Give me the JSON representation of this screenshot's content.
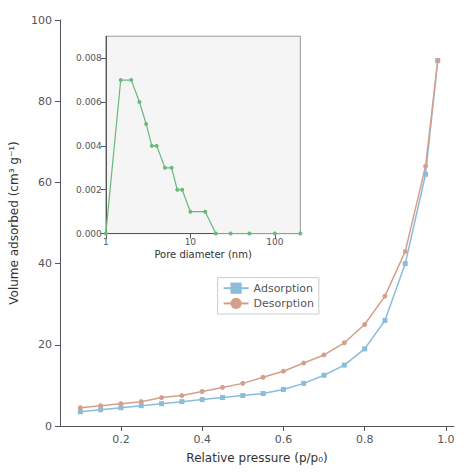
{
  "chart_data": [
    {
      "type": "line",
      "xlabel": "Relative pressure (p/p₀)",
      "ylabel": "Volume adsorbed (cm³ g⁻¹)",
      "series": [
        {
          "name": "Adsorption",
          "color": "#8bbcda",
          "marker": "square",
          "x": [
            0.1,
            0.15,
            0.2,
            0.25,
            0.3,
            0.35,
            0.4,
            0.45,
            0.5,
            0.55,
            0.6,
            0.65,
            0.7,
            0.75,
            0.8,
            0.85,
            0.9,
            0.95,
            0.98
          ],
          "values": [
            3.5,
            4.0,
            4.5,
            5.0,
            5.5,
            6.0,
            6.5,
            7.0,
            7.5,
            8.0,
            9.0,
            10.5,
            12.5,
            15.0,
            19.0,
            26.0,
            40.0,
            62.0,
            90.0
          ]
        },
        {
          "name": "Desorption",
          "color": "#d4a08c",
          "marker": "circle",
          "x": [
            0.98,
            0.95,
            0.9,
            0.85,
            0.8,
            0.75,
            0.7,
            0.65,
            0.6,
            0.55,
            0.5,
            0.45,
            0.4,
            0.35,
            0.3,
            0.25,
            0.2,
            0.15,
            0.1
          ],
          "values": [
            90.0,
            64.0,
            43.0,
            32.0,
            25.0,
            20.5,
            17.5,
            15.5,
            13.5,
            12.0,
            10.5,
            9.5,
            8.5,
            7.5,
            7.0,
            6.0,
            5.5,
            5.0,
            4.5
          ]
        }
      ],
      "xlim": [
        0.05,
        1.02
      ],
      "xticks": [
        0.2,
        0.4,
        0.6,
        0.8,
        {
          "value": 1.0,
          "label": "1.0"
        }
      ],
      "ylim": [
        0,
        100
      ],
      "yticks": [
        0,
        20,
        40,
        60,
        80,
        100
      ],
      "grid": false,
      "legend": "center"
    },
    {
      "type": "line",
      "xlabel": "Pore diameter (nm)",
      "x": [
        1.0,
        1.5,
        2.0,
        2.5,
        3.0,
        3.5,
        4.0,
        5.0,
        6.0,
        7.0,
        8.0,
        10.0,
        15.0,
        20.0,
        30.0,
        50.0,
        100.0,
        200.0
      ],
      "values": [
        0.0,
        0.007,
        0.007,
        0.006,
        0.005,
        0.004,
        0.004,
        0.003,
        0.003,
        0.002,
        0.002,
        0.001,
        0.001,
        0.0,
        0.0,
        0.0,
        0.0,
        0.0
      ],
      "color": "#6ab87a",
      "marker": "circle",
      "log": "x",
      "xlim": [
        1.0,
        200.0
      ],
      "xticks": [
        1,
        10,
        100
      ],
      "ylim": [
        0.0,
        0.009
      ],
      "yticks": [
        {
          "value": 0.0,
          "label": "0.000"
        },
        {
          "value": 0.002,
          "label": "0.002"
        },
        {
          "value": 0.004,
          "label": "0.004"
        },
        {
          "value": 0.006,
          "label": "0.006"
        },
        {
          "value": 0.008,
          "label": "0.008"
        }
      ],
      "grid": false
    }
  ]
}
